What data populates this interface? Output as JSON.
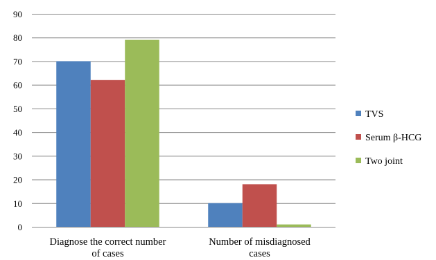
{
  "chart_data": {
    "type": "bar",
    "categories": [
      [
        "Diagnose the correct number",
        "of cases"
      ],
      [
        "Number of misdiagnosed",
        "cases"
      ]
    ],
    "series": [
      {
        "name": "TVS",
        "color": "#4F81BD",
        "values": [
          70,
          10
        ]
      },
      {
        "name": "Serum β-HCG",
        "color": "#C0504D",
        "values": [
          62,
          18
        ]
      },
      {
        "name": "Two joint",
        "color": "#9BBB59",
        "values": [
          79,
          1
        ]
      }
    ],
    "ylim": [
      0,
      90
    ],
    "yticks": [
      0,
      10,
      20,
      30,
      40,
      50,
      60,
      70,
      80,
      90
    ],
    "grid": true,
    "legend_position": "right"
  }
}
